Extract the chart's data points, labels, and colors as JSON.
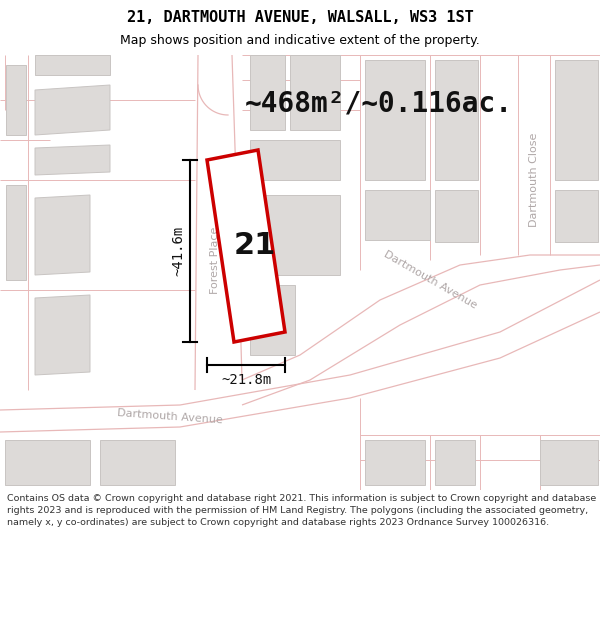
{
  "title": "21, DARTMOUTH AVENUE, WALSALL, WS3 1ST",
  "subtitle": "Map shows position and indicative extent of the property.",
  "area_label": "~468m²/~0.116ac.",
  "number_label": "21",
  "dim_width": "~21.8m",
  "dim_height": "~41.6m",
  "footer": "Contains OS data © Crown copyright and database right 2021. This information is subject to Crown copyright and database rights 2023 and is reproduced with the permission of HM Land Registry. The polygons (including the associated geometry, namely x, y co-ordinates) are subject to Crown copyright and database rights 2023 Ordnance Survey 100026316.",
  "map_bg": "#f2f0ef",
  "road_fill": "#ffffff",
  "road_edge": "#e8b8b8",
  "building_fill": "#dddad8",
  "building_edge": "#c8c4c2",
  "plot_fill": "#ffffff",
  "highlight_color": "#cc0000",
  "road_label_color": "#aaaaaa",
  "title_fontsize": 11,
  "subtitle_fontsize": 9,
  "footer_fontsize": 6.8,
  "area_fontsize": 20,
  "number_fontsize": 22,
  "dim_fontsize": 10
}
